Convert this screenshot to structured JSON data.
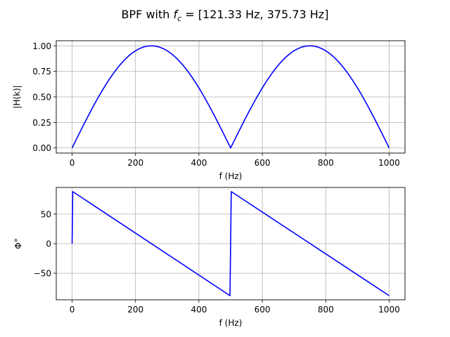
{
  "chart_data": [
    {
      "type": "line",
      "panel": "magnitude",
      "title_prefix": "BPF with",
      "title_var": "f",
      "title_sub": "c",
      "title_rest": " = [121.33 Hz, 375.73 Hz]",
      "xlabel": "f (Hz)",
      "ylabel": "|H(k)|",
      "xlim": [
        -50,
        1050
      ],
      "ylim": [
        -0.05,
        1.05
      ],
      "xticks": [
        0,
        200,
        400,
        600,
        800,
        1000
      ],
      "xtick_labels": [
        "0",
        "200",
        "400",
        "600",
        "800",
        "1000"
      ],
      "yticks": [
        0,
        0.25,
        0.5,
        0.75,
        1.0
      ],
      "ytick_labels": [
        "0.00",
        "0.25",
        "0.50",
        "0.75",
        "1.00"
      ],
      "grid": true,
      "color": "#0000ff",
      "formula": "|sin(pi*f/500)|",
      "x_range": [
        0,
        1000
      ]
    },
    {
      "type": "line",
      "panel": "phase",
      "xlabel": "f (Hz)",
      "ylabel": "Φ°",
      "xlim": [
        -50,
        1050
      ],
      "ylim": [
        -95,
        95
      ],
      "xticks": [
        0,
        200,
        400,
        600,
        800,
        1000
      ],
      "xtick_labels": [
        "0",
        "200",
        "400",
        "600",
        "800",
        "1000"
      ],
      "yticks": [
        -50,
        0,
        50
      ],
      "ytick_labels": [
        "−50",
        "0",
        "50"
      ],
      "grid": true,
      "color": "#0000ff",
      "x": [
        0,
        2,
        498,
        502,
        1000
      ],
      "y": [
        0,
        88,
        -88,
        88,
        -88
      ]
    }
  ]
}
